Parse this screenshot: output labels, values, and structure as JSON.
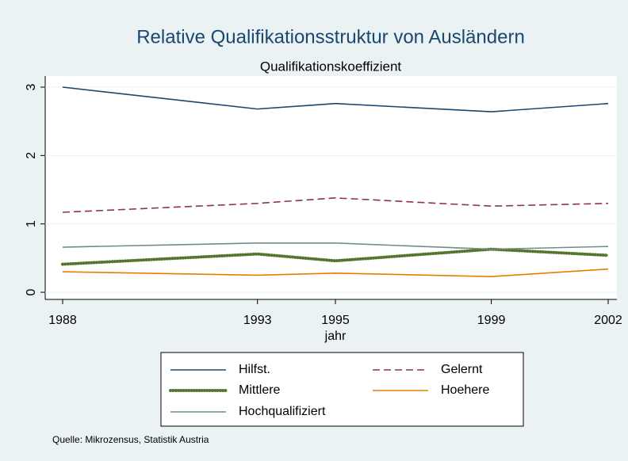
{
  "chart_data": {
    "type": "line",
    "title": "Relative Qualifikationsstruktur von Ausländern",
    "subtitle": "Qualifikationskoeffizient",
    "x_label": "jahr",
    "source": "Quelle: Mikrozensus, Statistik Austria",
    "x": [
      1988,
      1993,
      1995,
      1999,
      2002
    ],
    "xlim": [
      1988,
      2002
    ],
    "xticks": [
      1988,
      1993,
      1995,
      1999,
      2002
    ],
    "ylim": [
      0,
      3
    ],
    "yticks": [
      0,
      1,
      2,
      3
    ],
    "grid": true,
    "series": [
      {
        "name": "Hilfst.",
        "color": "#1a476f",
        "values": [
          3.0,
          2.68,
          2.76,
          2.64,
          2.76
        ]
      },
      {
        "name": "Gelernt",
        "color": "#90353b",
        "values": [
          1.17,
          1.3,
          1.38,
          1.26,
          1.3
        ]
      },
      {
        "name": "Mittlere",
        "color": "#55752f",
        "values": [
          0.41,
          0.56,
          0.46,
          0.63,
          0.54
        ]
      },
      {
        "name": "Hoehere",
        "color": "#e37e00",
        "values": [
          0.3,
          0.25,
          0.28,
          0.23,
          0.34
        ]
      },
      {
        "name": "Hochqualifiziert",
        "color": "#6e8e84",
        "values": [
          0.66,
          0.72,
          0.72,
          0.63,
          0.67
        ]
      }
    ]
  }
}
